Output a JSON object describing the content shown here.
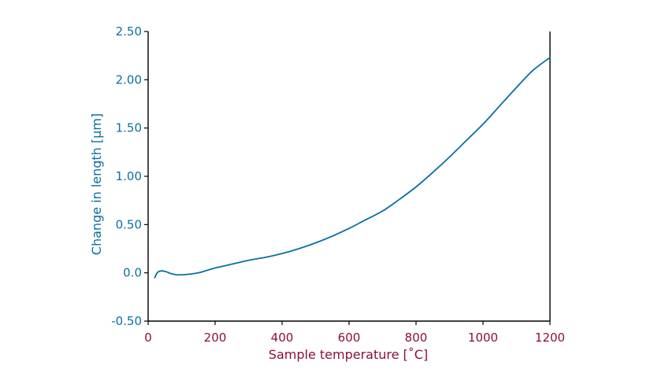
{
  "colors": {
    "y_axis_text": "#0a6fa0",
    "x_axis_text": "#8a0f3b",
    "line": "#0a6fa0",
    "axis_stroke": "#000000"
  },
  "chart_data": {
    "type": "line",
    "title": "",
    "xlabel": "Sample temperature [˚C]",
    "ylabel": "Change in length [µm]",
    "xlim": [
      0,
      1200
    ],
    "ylim": [
      -0.5,
      2.5
    ],
    "x_ticks": [
      0,
      200,
      400,
      600,
      800,
      1000,
      1200
    ],
    "x_tick_labels": [
      "0",
      "200",
      "400",
      "600",
      "800",
      "1000",
      "1200"
    ],
    "y_ticks": [
      -0.5,
      0.0,
      0.5,
      1.0,
      1.5,
      2.0,
      2.5
    ],
    "y_tick_labels": [
      "-0.50",
      "0.0",
      "0.50",
      "1.00",
      "1.50",
      "2.00",
      "2.50"
    ],
    "grid": false,
    "series": [
      {
        "x": [
          20,
          25,
          30,
          40,
          55,
          70,
          85,
          100,
          120,
          150,
          200,
          250,
          300,
          350,
          400,
          450,
          500,
          550,
          600,
          650,
          700,
          750,
          800,
          850,
          900,
          950,
          1000,
          1050,
          1100,
          1150,
          1200
        ],
        "y": [
          -0.05,
          -0.01,
          0.01,
          0.02,
          0.01,
          -0.01,
          -0.02,
          -0.02,
          -0.015,
          0.0,
          0.05,
          0.09,
          0.13,
          0.16,
          0.2,
          0.25,
          0.31,
          0.38,
          0.46,
          0.55,
          0.64,
          0.76,
          0.89,
          1.04,
          1.2,
          1.37,
          1.54,
          1.73,
          1.92,
          2.1,
          2.23
        ]
      }
    ]
  }
}
